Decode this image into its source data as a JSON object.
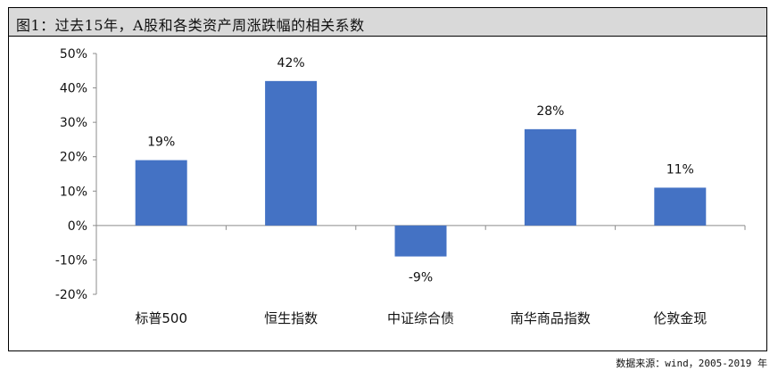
{
  "figure": {
    "title": "图1：过去15年，A股和各类资产周涨跌幅的相关系数",
    "source": "数据来源：wind，2005-2019 年"
  },
  "chart_data": {
    "type": "bar",
    "categories": [
      "标普500",
      "恒生指数",
      "中证综合债",
      "南华商品指数",
      "伦敦金现"
    ],
    "values": [
      19,
      42,
      -9,
      28,
      11
    ],
    "value_labels": [
      "19%",
      "42%",
      "-9%",
      "28%",
      "11%"
    ],
    "ylim": [
      -20,
      50
    ],
    "yticks": [
      50,
      40,
      30,
      20,
      10,
      0,
      -10,
      -20
    ],
    "ytick_labels": [
      "50%",
      "40%",
      "30%",
      "20%",
      "10%",
      "0%",
      "-10%",
      "-20%"
    ],
    "bar_color": "#4472c4",
    "grid": false
  }
}
